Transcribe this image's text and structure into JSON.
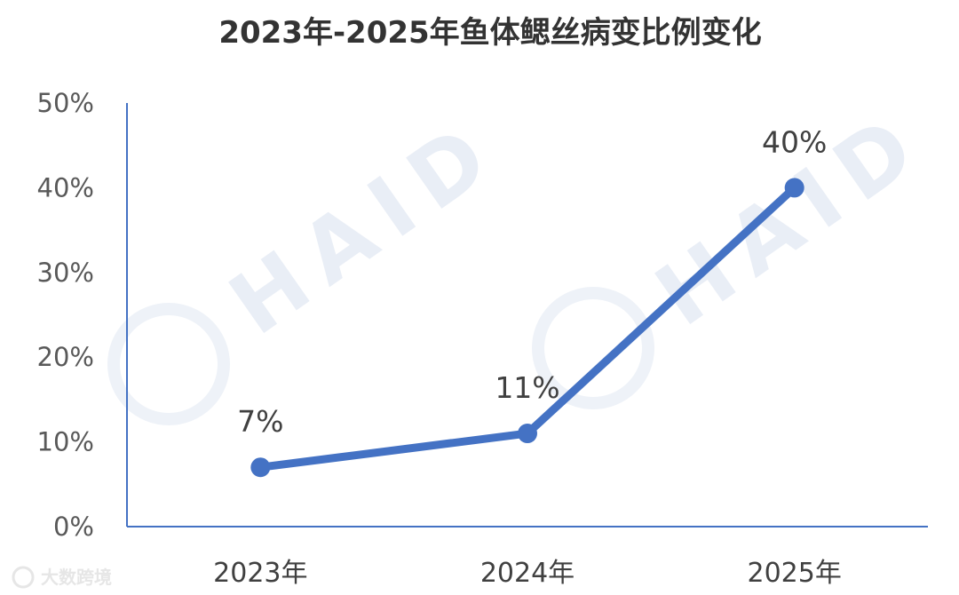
{
  "chart_data": {
    "type": "line",
    "title": "2023年-2025年鱼体鳃丝病变比例变化",
    "categories": [
      "2023年",
      "2024年",
      "2025年"
    ],
    "series": [
      {
        "values": [
          7,
          11,
          40
        ],
        "labels": [
          "7%",
          "11%",
          "40%"
        ]
      }
    ],
    "y_ticks": [
      "0%",
      "10%",
      "20%",
      "30%",
      "40%",
      "50%"
    ],
    "ylim": [
      0,
      50
    ],
    "xlabel": "",
    "ylabel": "",
    "grid": false,
    "legend": "none",
    "line_color": "#4472C4"
  },
  "watermark": {
    "text": "HAID"
  },
  "corner_mark": {
    "text": "大数跨境"
  }
}
